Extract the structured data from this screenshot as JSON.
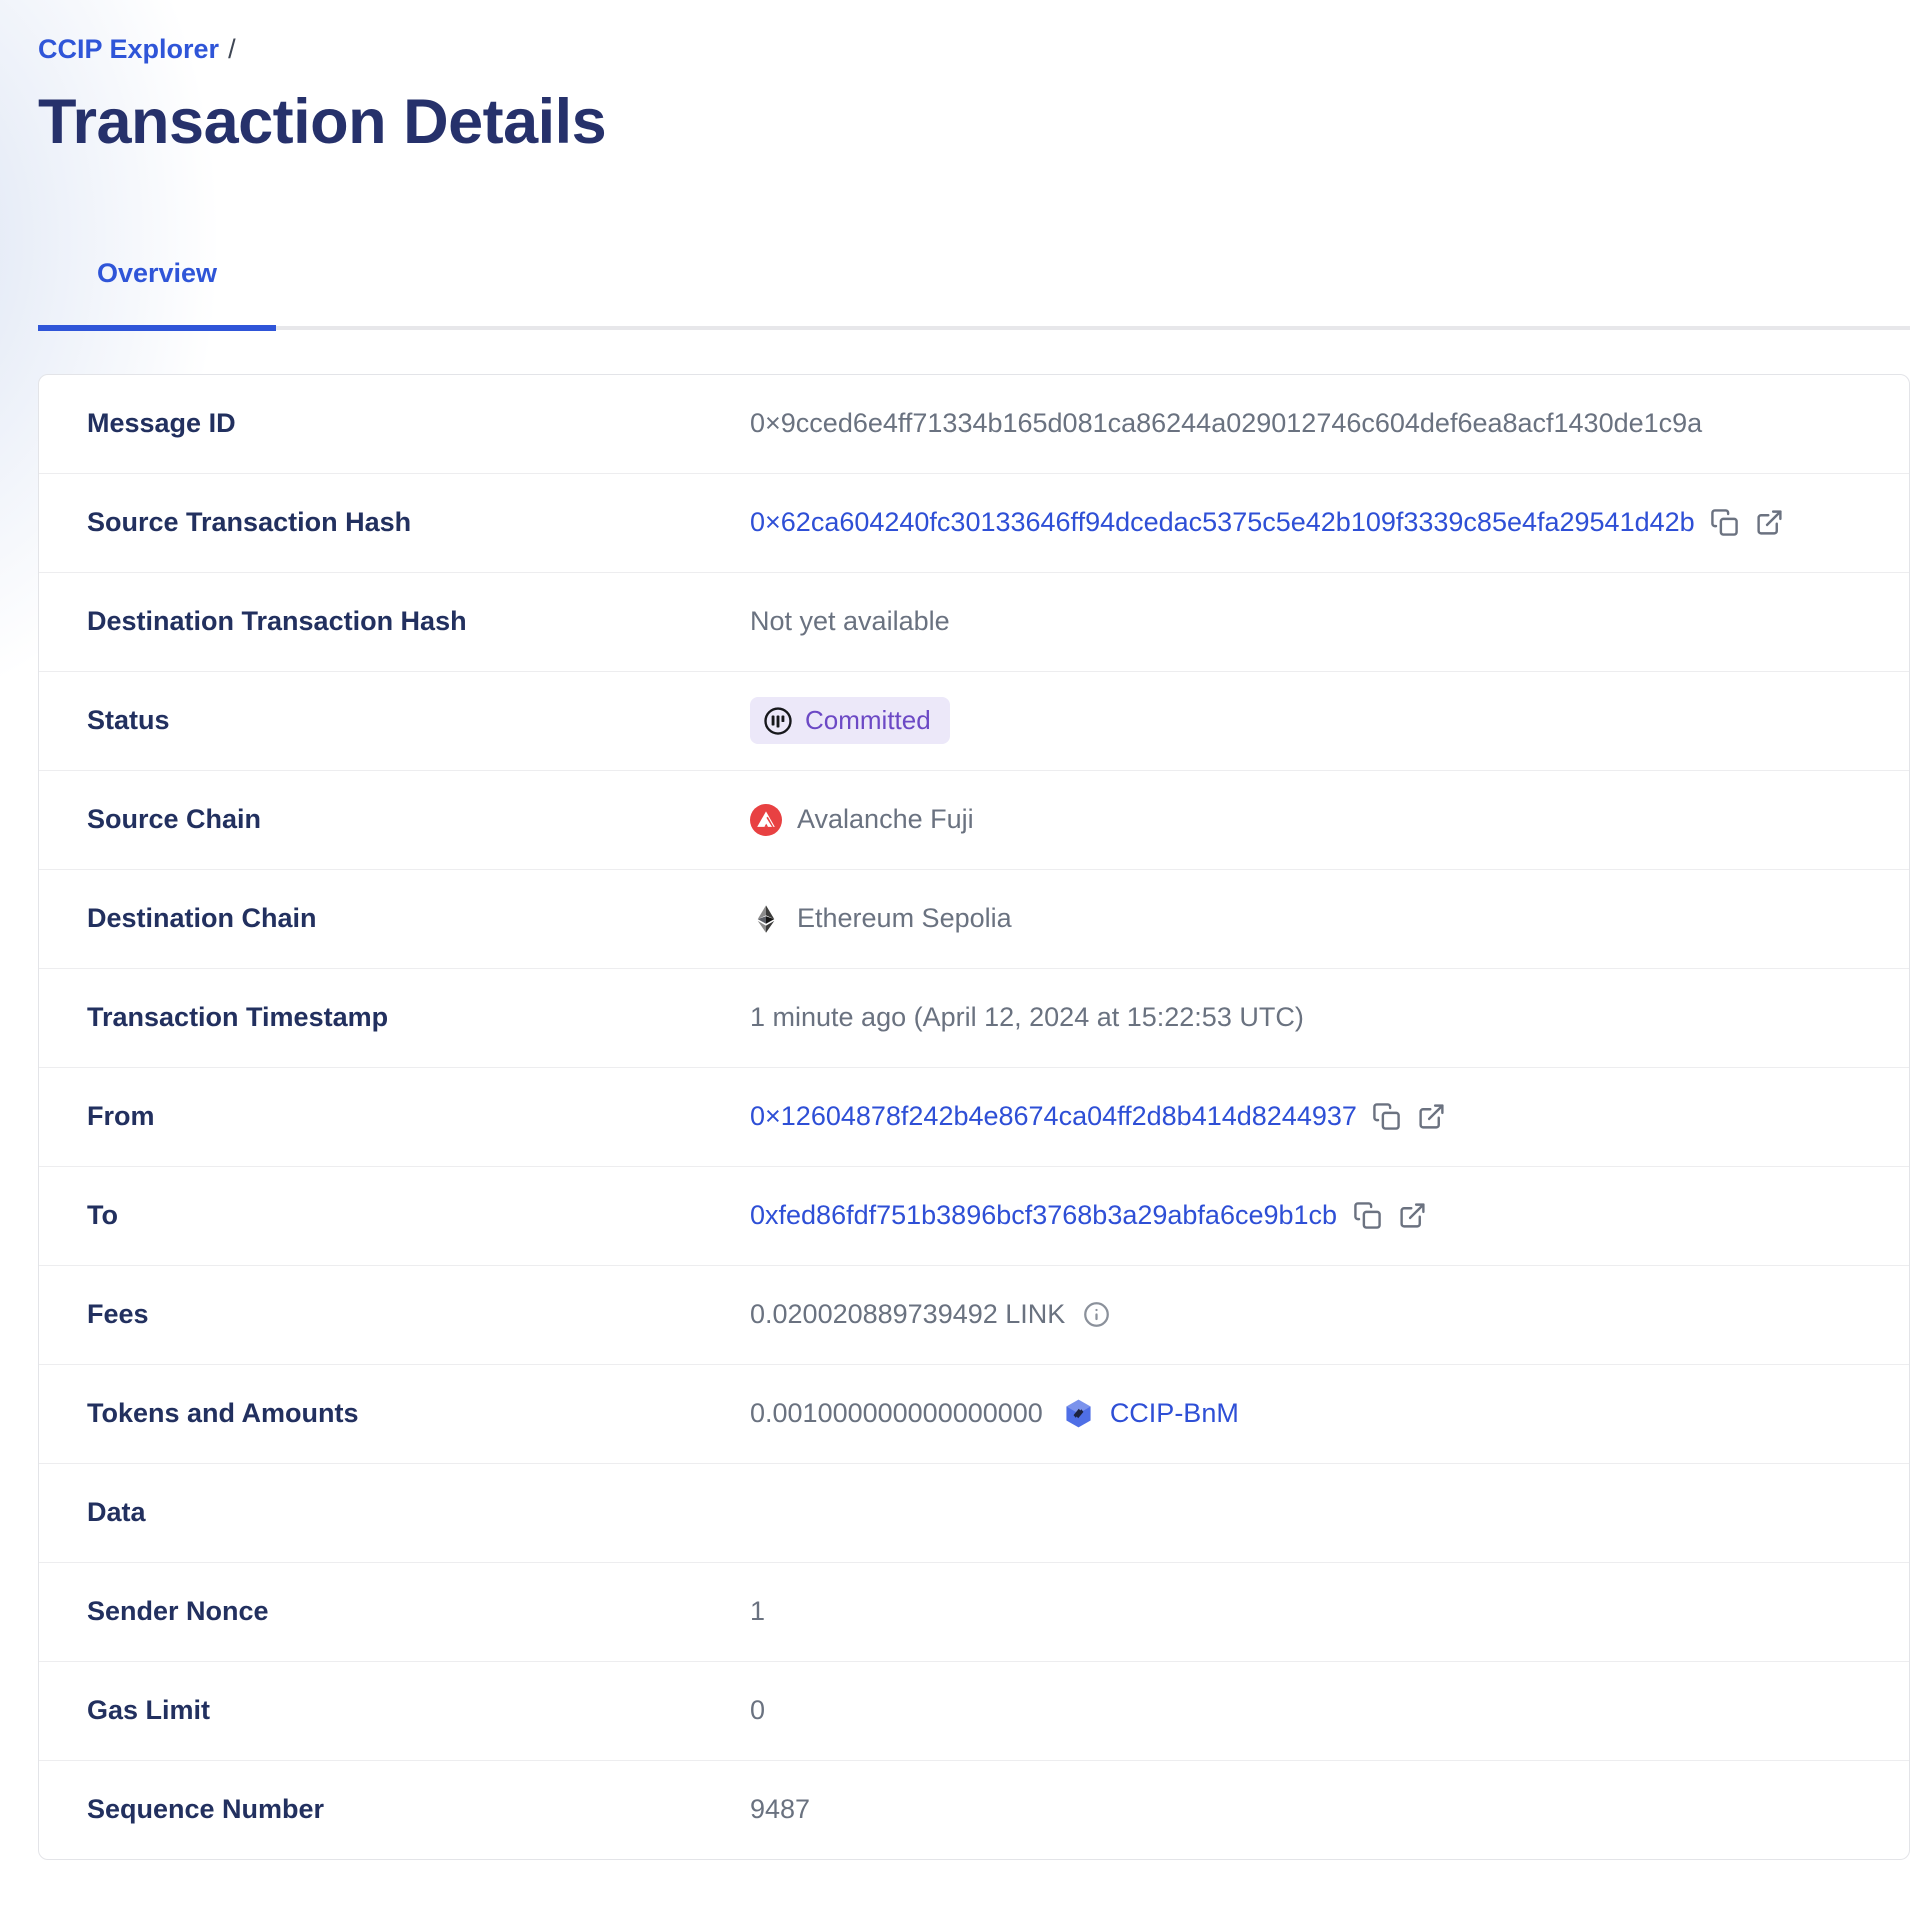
{
  "breadcrumb": {
    "link": "CCIP Explorer",
    "separator": "/"
  },
  "page_title": "Transaction Details",
  "tabs": [
    {
      "label": "Overview",
      "active": true
    }
  ],
  "colors": {
    "accent": "#2f55d8",
    "link": "#2e4fd6",
    "title": "#26316b",
    "label": "#22305f",
    "muted": "#6a7280",
    "badge_bg": "#ece8f9",
    "badge_fg": "#6c49c5",
    "avalanche_red": "#e84142"
  },
  "rows": [
    {
      "label": "Message ID",
      "type": "text",
      "value": "0×9cced6e4ff71334b165d081ca86244a029012746c604def6ea8acf1430de1c9a"
    },
    {
      "label": "Source Transaction Hash",
      "type": "link-copy-external",
      "value": "0×62ca604240fc30133646ff94dcedac5375c5e42b109f3339c85e4fa29541d42b"
    },
    {
      "label": "Destination Transaction Hash",
      "type": "text",
      "value": "Not yet available"
    },
    {
      "label": "Status",
      "type": "badge",
      "value": "Committed",
      "icon": "committed-icon"
    },
    {
      "label": "Source Chain",
      "type": "chain",
      "icon": "avalanche-icon",
      "value": "Avalanche Fuji"
    },
    {
      "label": "Destination Chain",
      "type": "chain",
      "icon": "ethereum-icon",
      "value": "Ethereum Sepolia"
    },
    {
      "label": "Transaction Timestamp",
      "type": "text",
      "value": "1 minute ago (April 12, 2024 at 15:22:53 UTC)"
    },
    {
      "label": "From",
      "type": "link-copy-external",
      "value": "0×12604878f242b4e8674ca04ff2d8b414d8244937"
    },
    {
      "label": "To",
      "type": "link-copy-external",
      "value": "0xfed86fdf751b3896bcf3768b3a29abfa6ce9b1cb"
    },
    {
      "label": "Fees",
      "type": "fees",
      "value": "0.020020889739492 LINK"
    },
    {
      "label": "Tokens and Amounts",
      "type": "token",
      "amount": "0.001000000000000000",
      "token": "CCIP-BnM",
      "icon": "ccip-bnm-token-icon"
    },
    {
      "label": "Data",
      "type": "empty",
      "value": ""
    },
    {
      "label": "Sender Nonce",
      "type": "text",
      "value": "1"
    },
    {
      "label": "Gas Limit",
      "type": "text",
      "value": "0"
    },
    {
      "label": "Sequence Number",
      "type": "text",
      "value": "9487"
    }
  ]
}
